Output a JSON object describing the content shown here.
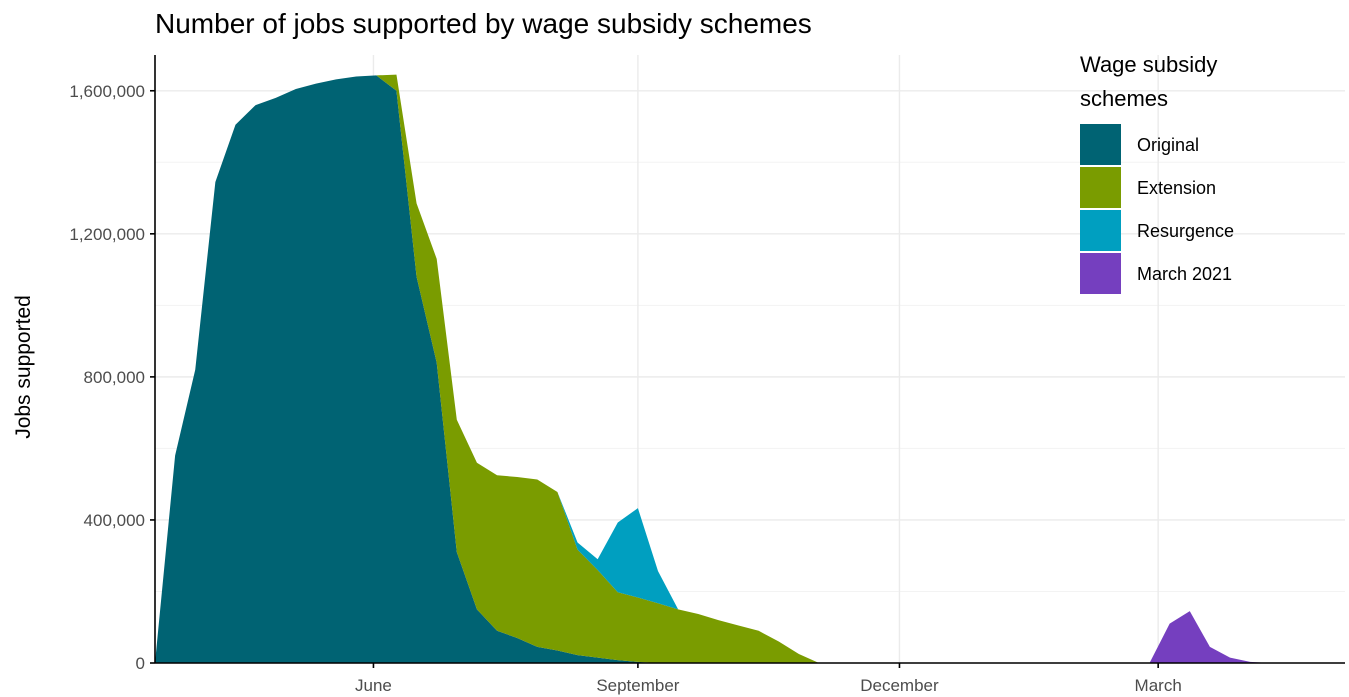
{
  "chart_data": {
    "type": "area",
    "title": "Number of jobs supported by wage subsidy schemes",
    "xlabel": "",
    "ylabel": "Jobs supported",
    "ylim": [
      0,
      1700000
    ],
    "xlim": [
      "2020-03-17",
      "2021-05-05"
    ],
    "stacked": true,
    "grid": true,
    "yticks": [
      0,
      400000,
      800000,
      1200000,
      1600000
    ],
    "ytick_labels": [
      "0",
      "400,000",
      "800,000",
      "1,200,000",
      "1,600,000"
    ],
    "xticks": [
      "2020-06-01",
      "2020-09-01",
      "2020-12-01",
      "2021-03-01"
    ],
    "xtick_labels": [
      "June",
      "September",
      "December",
      "March"
    ],
    "legend": {
      "title_lines": [
        "Wage subsidy",
        "schemes"
      ],
      "position": "top-right"
    },
    "series": [
      {
        "name": "Original",
        "color": "#006373",
        "points": [
          [
            "2020-03-17",
            0
          ],
          [
            "2020-03-24",
            580000
          ],
          [
            "2020-03-31",
            820000
          ],
          [
            "2020-04-07",
            1345000
          ],
          [
            "2020-04-14",
            1505000
          ],
          [
            "2020-04-21",
            1560000
          ],
          [
            "2020-04-28",
            1580000
          ],
          [
            "2020-05-05",
            1605000
          ],
          [
            "2020-05-12",
            1620000
          ],
          [
            "2020-05-19",
            1632000
          ],
          [
            "2020-05-26",
            1640000
          ],
          [
            "2020-06-02",
            1643000
          ],
          [
            "2020-06-09",
            1600000
          ],
          [
            "2020-06-16",
            1080000
          ],
          [
            "2020-06-23",
            840000
          ],
          [
            "2020-06-30",
            310000
          ],
          [
            "2020-07-07",
            150000
          ],
          [
            "2020-07-14",
            90000
          ],
          [
            "2020-07-21",
            70000
          ],
          [
            "2020-07-28",
            45000
          ],
          [
            "2020-08-04",
            35000
          ],
          [
            "2020-08-11",
            22000
          ],
          [
            "2020-08-18",
            15000
          ],
          [
            "2020-08-25",
            8000
          ],
          [
            "2020-09-01",
            3000
          ],
          [
            "2020-09-08",
            0
          ],
          [
            "2021-05-05",
            0
          ]
        ]
      },
      {
        "name": "Extension",
        "color": "#7a9c00",
        "points": [
          [
            "2020-06-02",
            0
          ],
          [
            "2020-06-09",
            45000
          ],
          [
            "2020-06-16",
            205000
          ],
          [
            "2020-06-23",
            290000
          ],
          [
            "2020-06-30",
            370000
          ],
          [
            "2020-07-07",
            410000
          ],
          [
            "2020-07-14",
            435000
          ],
          [
            "2020-07-21",
            450000
          ],
          [
            "2020-07-28",
            468000
          ],
          [
            "2020-08-04",
            443000
          ],
          [
            "2020-08-11",
            295000
          ],
          [
            "2020-08-18",
            245000
          ],
          [
            "2020-08-25",
            190000
          ],
          [
            "2020-09-01",
            180000
          ],
          [
            "2020-09-08",
            167000
          ],
          [
            "2020-09-15",
            150000
          ],
          [
            "2020-09-22",
            137000
          ],
          [
            "2020-09-29",
            120000
          ],
          [
            "2020-10-06",
            105000
          ],
          [
            "2020-10-13",
            90000
          ],
          [
            "2020-10-20",
            60000
          ],
          [
            "2020-10-27",
            25000
          ],
          [
            "2020-11-03",
            0
          ],
          [
            "2021-05-05",
            0
          ]
        ]
      },
      {
        "name": "Resurgence",
        "color": "#009fc0",
        "points": [
          [
            "2020-08-04",
            0
          ],
          [
            "2020-08-11",
            20000
          ],
          [
            "2020-08-18",
            30000
          ],
          [
            "2020-08-25",
            195000
          ],
          [
            "2020-09-01",
            250000
          ],
          [
            "2020-09-08",
            90000
          ],
          [
            "2020-09-15",
            0
          ],
          [
            "2021-05-05",
            0
          ]
        ]
      },
      {
        "name": "March 2021",
        "color": "#753fbf",
        "points": [
          [
            "2020-03-17",
            0
          ],
          [
            "2021-02-26",
            0
          ],
          [
            "2021-03-05",
            110000
          ],
          [
            "2021-03-12",
            145000
          ],
          [
            "2021-03-19",
            45000
          ],
          [
            "2021-03-26",
            15000
          ],
          [
            "2021-04-02",
            3000
          ],
          [
            "2021-04-09",
            0
          ],
          [
            "2021-05-05",
            0
          ]
        ]
      }
    ]
  }
}
